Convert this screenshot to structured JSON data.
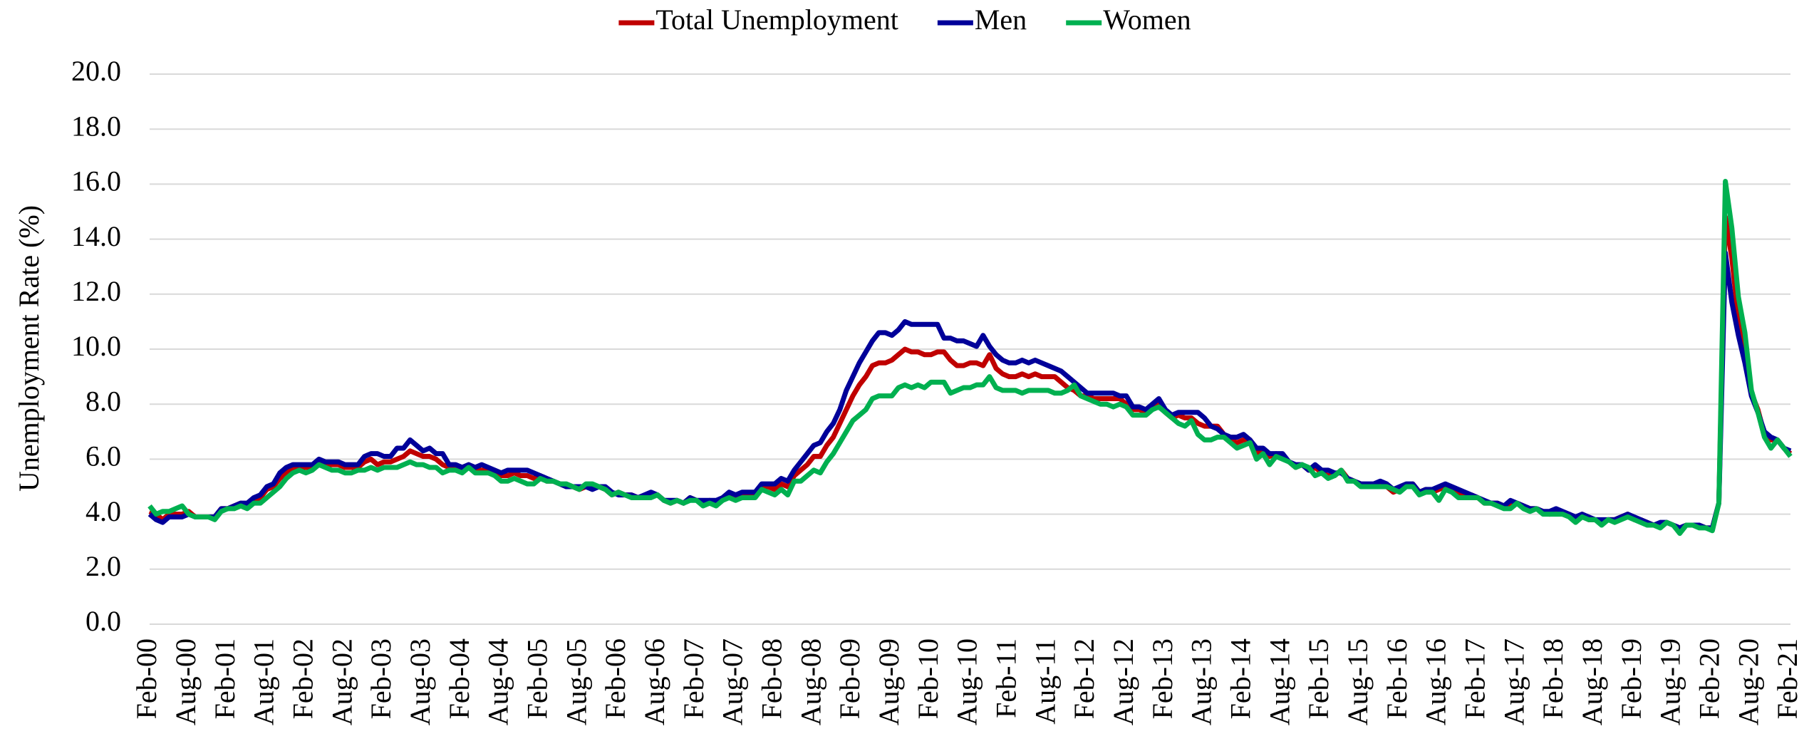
{
  "chart_data": {
    "type": "line",
    "y_label": "Unemployment Rate (%)",
    "legend": "top",
    "grid": true,
    "ylim": [
      0,
      20
    ],
    "yticks": [
      {
        "value": 0,
        "label": "0.0"
      },
      {
        "value": 2,
        "label": "2.0"
      },
      {
        "value": 4,
        "label": "4.0"
      },
      {
        "value": 6,
        "label": "6.0"
      },
      {
        "value": 8,
        "label": "8.0"
      },
      {
        "value": 10,
        "label": "10.0"
      },
      {
        "value": 12,
        "label": "12.0"
      },
      {
        "value": 14,
        "label": "14.0"
      },
      {
        "value": 16,
        "label": "16.0"
      },
      {
        "value": 18,
        "label": "18.0"
      },
      {
        "value": 20,
        "label": "20.0"
      }
    ],
    "categories": [
      "Feb-00",
      null,
      null,
      null,
      null,
      null,
      "Aug-00",
      null,
      null,
      null,
      null,
      null,
      "Feb-01",
      null,
      null,
      null,
      null,
      null,
      "Aug-01",
      null,
      null,
      null,
      null,
      null,
      "Feb-02",
      null,
      null,
      null,
      null,
      null,
      "Aug-02",
      null,
      null,
      null,
      null,
      null,
      "Feb-03",
      null,
      null,
      null,
      null,
      null,
      "Aug-03",
      null,
      null,
      null,
      null,
      null,
      "Feb-04",
      null,
      null,
      null,
      null,
      null,
      "Aug-04",
      null,
      null,
      null,
      null,
      null,
      "Feb-05",
      null,
      null,
      null,
      null,
      null,
      "Aug-05",
      null,
      null,
      null,
      null,
      null,
      "Feb-06",
      null,
      null,
      null,
      null,
      null,
      "Aug-06",
      null,
      null,
      null,
      null,
      null,
      "Feb-07",
      null,
      null,
      null,
      null,
      null,
      "Aug-07",
      null,
      null,
      null,
      null,
      null,
      "Feb-08",
      null,
      null,
      null,
      null,
      null,
      "Aug-08",
      null,
      null,
      null,
      null,
      null,
      "Feb-09",
      null,
      null,
      null,
      null,
      null,
      "Aug-09",
      null,
      null,
      null,
      null,
      null,
      "Feb-10",
      null,
      null,
      null,
      null,
      null,
      "Aug-10",
      null,
      null,
      null,
      null,
      null,
      "Feb-11",
      null,
      null,
      null,
      null,
      null,
      "Aug-11",
      null,
      null,
      null,
      null,
      null,
      "Feb-12",
      null,
      null,
      null,
      null,
      null,
      "Aug-12",
      null,
      null,
      null,
      null,
      null,
      "Feb-13",
      null,
      null,
      null,
      null,
      null,
      "Aug-13",
      null,
      null,
      null,
      null,
      null,
      "Feb-14",
      null,
      null,
      null,
      null,
      null,
      "Aug-14",
      null,
      null,
      null,
      null,
      null,
      "Feb-15",
      null,
      null,
      null,
      null,
      null,
      "Aug-15",
      null,
      null,
      null,
      null,
      null,
      "Feb-16",
      null,
      null,
      null,
      null,
      null,
      "Aug-16",
      null,
      null,
      null,
      null,
      null,
      "Feb-17",
      null,
      null,
      null,
      null,
      null,
      "Aug-17",
      null,
      null,
      null,
      null,
      null,
      "Feb-18",
      null,
      null,
      null,
      null,
      null,
      "Aug-18",
      null,
      null,
      null,
      null,
      null,
      "Feb-19",
      null,
      null,
      null,
      null,
      null,
      "Aug-19",
      null,
      null,
      null,
      null,
      null,
      "Feb-20",
      null,
      null,
      null,
      null,
      null,
      "Aug-20",
      null,
      null,
      null,
      null,
      null,
      "Feb-21"
    ],
    "series": [
      {
        "name": "Total Unemployment",
        "color": "#c00000",
        "values": [
          4.1,
          4.0,
          3.8,
          4.0,
          4.0,
          4.0,
          4.1,
          3.9,
          3.9,
          3.9,
          3.9,
          4.2,
          4.2,
          4.3,
          4.4,
          4.3,
          4.5,
          4.6,
          4.9,
          5.0,
          5.3,
          5.5,
          5.7,
          5.7,
          5.7,
          5.7,
          5.9,
          5.8,
          5.8,
          5.8,
          5.7,
          5.7,
          5.7,
          5.9,
          6.0,
          5.8,
          5.9,
          5.9,
          6.0,
          6.1,
          6.3,
          6.2,
          6.1,
          6.1,
          6.0,
          5.8,
          5.7,
          5.7,
          5.6,
          5.8,
          5.6,
          5.6,
          5.6,
          5.5,
          5.4,
          5.4,
          5.5,
          5.4,
          5.4,
          5.3,
          5.4,
          5.2,
          5.2,
          5.1,
          5.0,
          5.0,
          4.9,
          5.0,
          5.0,
          5.0,
          4.9,
          4.7,
          4.8,
          4.7,
          4.7,
          4.6,
          4.6,
          4.7,
          4.7,
          4.5,
          4.4,
          4.5,
          4.4,
          4.6,
          4.5,
          4.4,
          4.5,
          4.4,
          4.6,
          4.7,
          4.6,
          4.7,
          4.7,
          4.7,
          5.0,
          5.0,
          4.9,
          5.1,
          5.0,
          5.4,
          5.6,
          5.8,
          6.1,
          6.1,
          6.5,
          6.8,
          7.3,
          7.8,
          8.3,
          8.7,
          9.0,
          9.4,
          9.5,
          9.5,
          9.6,
          9.8,
          10.0,
          9.9,
          9.9,
          9.8,
          9.8,
          9.9,
          9.9,
          9.6,
          9.4,
          9.4,
          9.5,
          9.5,
          9.4,
          9.8,
          9.3,
          9.1,
          9.0,
          9.0,
          9.1,
          9.0,
          9.1,
          9.0,
          9.0,
          9.0,
          8.8,
          8.6,
          8.5,
          8.3,
          8.3,
          8.2,
          8.2,
          8.2,
          8.2,
          8.2,
          8.0,
          7.8,
          7.8,
          7.7,
          7.9,
          8.0,
          7.7,
          7.5,
          7.6,
          7.5,
          7.5,
          7.3,
          7.2,
          7.2,
          7.2,
          6.9,
          6.7,
          6.6,
          6.7,
          6.7,
          6.2,
          6.3,
          6.1,
          6.2,
          6.1,
          5.9,
          5.7,
          5.8,
          5.6,
          5.7,
          5.5,
          5.4,
          5.4,
          5.6,
          5.3,
          5.2,
          5.1,
          5.0,
          5.0,
          5.1,
          5.0,
          4.8,
          4.9,
          5.0,
          5.1,
          4.8,
          4.9,
          4.8,
          4.9,
          5.0,
          4.9,
          4.7,
          4.7,
          4.7,
          4.6,
          4.4,
          4.4,
          4.4,
          4.3,
          4.3,
          4.4,
          4.3,
          4.2,
          4.2,
          4.1,
          4.0,
          4.1,
          4.0,
          4.0,
          3.8,
          4.0,
          3.8,
          3.8,
          3.7,
          3.8,
          3.8,
          3.9,
          4.0,
          3.8,
          3.8,
          3.7,
          3.6,
          3.6,
          3.7,
          3.6,
          3.5,
          3.6,
          3.6,
          3.6,
          3.5,
          3.5,
          4.4,
          14.8,
          13.3,
          11.1,
          10.2,
          8.4,
          7.8,
          6.9,
          6.7,
          6.7,
          6.4,
          6.2
        ]
      },
      {
        "name": "Men",
        "color": "#000099",
        "values": [
          4.0,
          3.8,
          3.7,
          3.9,
          3.9,
          3.9,
          4.0,
          3.9,
          3.9,
          3.9,
          3.9,
          4.2,
          4.2,
          4.3,
          4.4,
          4.4,
          4.6,
          4.7,
          5.0,
          5.1,
          5.5,
          5.7,
          5.8,
          5.8,
          5.8,
          5.8,
          6.0,
          5.9,
          5.9,
          5.9,
          5.8,
          5.8,
          5.8,
          6.1,
          6.2,
          6.2,
          6.1,
          6.1,
          6.4,
          6.4,
          6.7,
          6.5,
          6.3,
          6.4,
          6.2,
          6.2,
          5.8,
          5.8,
          5.7,
          5.8,
          5.7,
          5.8,
          5.7,
          5.6,
          5.5,
          5.6,
          5.6,
          5.6,
          5.6,
          5.5,
          5.4,
          5.3,
          5.2,
          5.1,
          5.0,
          5.0,
          5.0,
          5.0,
          4.9,
          5.0,
          5.0,
          4.8,
          4.7,
          4.7,
          4.7,
          4.6,
          4.7,
          4.8,
          4.7,
          4.5,
          4.5,
          4.5,
          4.4,
          4.6,
          4.5,
          4.5,
          4.5,
          4.5,
          4.6,
          4.8,
          4.7,
          4.8,
          4.8,
          4.8,
          5.1,
          5.1,
          5.1,
          5.3,
          5.2,
          5.6,
          5.9,
          6.2,
          6.5,
          6.6,
          7.0,
          7.3,
          7.8,
          8.5,
          9.0,
          9.5,
          9.9,
          10.3,
          10.6,
          10.6,
          10.5,
          10.7,
          11.0,
          10.9,
          10.9,
          10.9,
          10.9,
          10.9,
          10.4,
          10.4,
          10.3,
          10.3,
          10.2,
          10.1,
          10.5,
          10.1,
          9.8,
          9.6,
          9.5,
          9.5,
          9.6,
          9.5,
          9.6,
          9.5,
          9.4,
          9.3,
          9.2,
          9.0,
          8.8,
          8.6,
          8.4,
          8.4,
          8.4,
          8.4,
          8.4,
          8.3,
          8.3,
          7.9,
          7.9,
          7.8,
          8.0,
          8.2,
          7.8,
          7.6,
          7.7,
          7.7,
          7.7,
          7.7,
          7.5,
          7.2,
          7.1,
          6.9,
          6.8,
          6.8,
          6.9,
          6.7,
          6.4,
          6.4,
          6.2,
          6.2,
          6.2,
          5.9,
          5.8,
          5.8,
          5.6,
          5.8,
          5.6,
          5.6,
          5.5,
          5.5,
          5.3,
          5.2,
          5.1,
          5.1,
          5.1,
          5.2,
          5.1,
          4.9,
          5.0,
          5.1,
          5.1,
          4.8,
          4.9,
          4.9,
          5.0,
          5.1,
          5.0,
          4.9,
          4.8,
          4.7,
          4.6,
          4.5,
          4.4,
          4.4,
          4.3,
          4.5,
          4.4,
          4.3,
          4.2,
          4.2,
          4.1,
          4.1,
          4.2,
          4.1,
          4.0,
          3.9,
          4.0,
          3.9,
          3.8,
          3.8,
          3.8,
          3.8,
          3.9,
          4.0,
          3.9,
          3.8,
          3.7,
          3.6,
          3.7,
          3.7,
          3.6,
          3.5,
          3.6,
          3.6,
          3.6,
          3.5,
          3.5,
          4.4,
          13.5,
          11.7,
          10.5,
          9.5,
          8.3,
          7.7,
          7.0,
          6.8,
          6.7,
          6.4,
          6.3
        ]
      },
      {
        "name": "Women",
        "color": "#00b050",
        "values": [
          4.3,
          4.0,
          4.1,
          4.1,
          4.2,
          4.3,
          4.0,
          3.9,
          3.9,
          3.9,
          3.8,
          4.1,
          4.2,
          4.2,
          4.3,
          4.2,
          4.4,
          4.4,
          4.6,
          4.8,
          5.0,
          5.3,
          5.5,
          5.6,
          5.5,
          5.6,
          5.8,
          5.7,
          5.6,
          5.6,
          5.5,
          5.5,
          5.6,
          5.6,
          5.7,
          5.6,
          5.7,
          5.7,
          5.7,
          5.8,
          5.9,
          5.8,
          5.8,
          5.7,
          5.7,
          5.5,
          5.6,
          5.6,
          5.5,
          5.7,
          5.5,
          5.5,
          5.5,
          5.4,
          5.2,
          5.2,
          5.3,
          5.2,
          5.1,
          5.1,
          5.3,
          5.2,
          5.2,
          5.1,
          5.1,
          5.0,
          4.9,
          5.1,
          5.1,
          5.0,
          4.9,
          4.7,
          4.8,
          4.7,
          4.6,
          4.6,
          4.6,
          4.6,
          4.7,
          4.5,
          4.4,
          4.5,
          4.4,
          4.5,
          4.5,
          4.3,
          4.4,
          4.3,
          4.5,
          4.6,
          4.5,
          4.6,
          4.6,
          4.6,
          4.9,
          4.8,
          4.7,
          4.9,
          4.7,
          5.2,
          5.2,
          5.4,
          5.6,
          5.5,
          5.9,
          6.2,
          6.6,
          7.0,
          7.4,
          7.6,
          7.8,
          8.2,
          8.3,
          8.3,
          8.3,
          8.6,
          8.7,
          8.6,
          8.7,
          8.6,
          8.8,
          8.8,
          8.8,
          8.4,
          8.5,
          8.6,
          8.6,
          8.7,
          8.7,
          9.0,
          8.6,
          8.5,
          8.5,
          8.5,
          8.4,
          8.5,
          8.5,
          8.5,
          8.5,
          8.4,
          8.4,
          8.5,
          8.7,
          8.3,
          8.2,
          8.1,
          8.0,
          8.0,
          7.9,
          8.0,
          7.9,
          7.6,
          7.6,
          7.6,
          7.8,
          7.9,
          7.7,
          7.5,
          7.3,
          7.2,
          7.4,
          6.9,
          6.7,
          6.7,
          6.8,
          6.8,
          6.6,
          6.4,
          6.5,
          6.6,
          6.0,
          6.2,
          5.8,
          6.1,
          6.0,
          5.9,
          5.7,
          5.8,
          5.7,
          5.4,
          5.5,
          5.3,
          5.4,
          5.6,
          5.2,
          5.2,
          5.0,
          5.0,
          5.0,
          5.0,
          5.0,
          4.9,
          4.8,
          5.0,
          5.0,
          4.7,
          4.8,
          4.8,
          4.5,
          4.9,
          4.8,
          4.6,
          4.6,
          4.6,
          4.6,
          4.4,
          4.4,
          4.3,
          4.2,
          4.2,
          4.4,
          4.2,
          4.1,
          4.2,
          4.0,
          4.0,
          4.0,
          4.0,
          3.9,
          3.7,
          3.9,
          3.8,
          3.8,
          3.6,
          3.8,
          3.7,
          3.8,
          3.9,
          3.8,
          3.7,
          3.6,
          3.6,
          3.5,
          3.7,
          3.6,
          3.3,
          3.6,
          3.6,
          3.5,
          3.5,
          3.4,
          4.4,
          16.1,
          14.4,
          11.9,
          10.6,
          8.5,
          7.7,
          6.8,
          6.4,
          6.7,
          6.4,
          6.1
        ]
      }
    ]
  }
}
